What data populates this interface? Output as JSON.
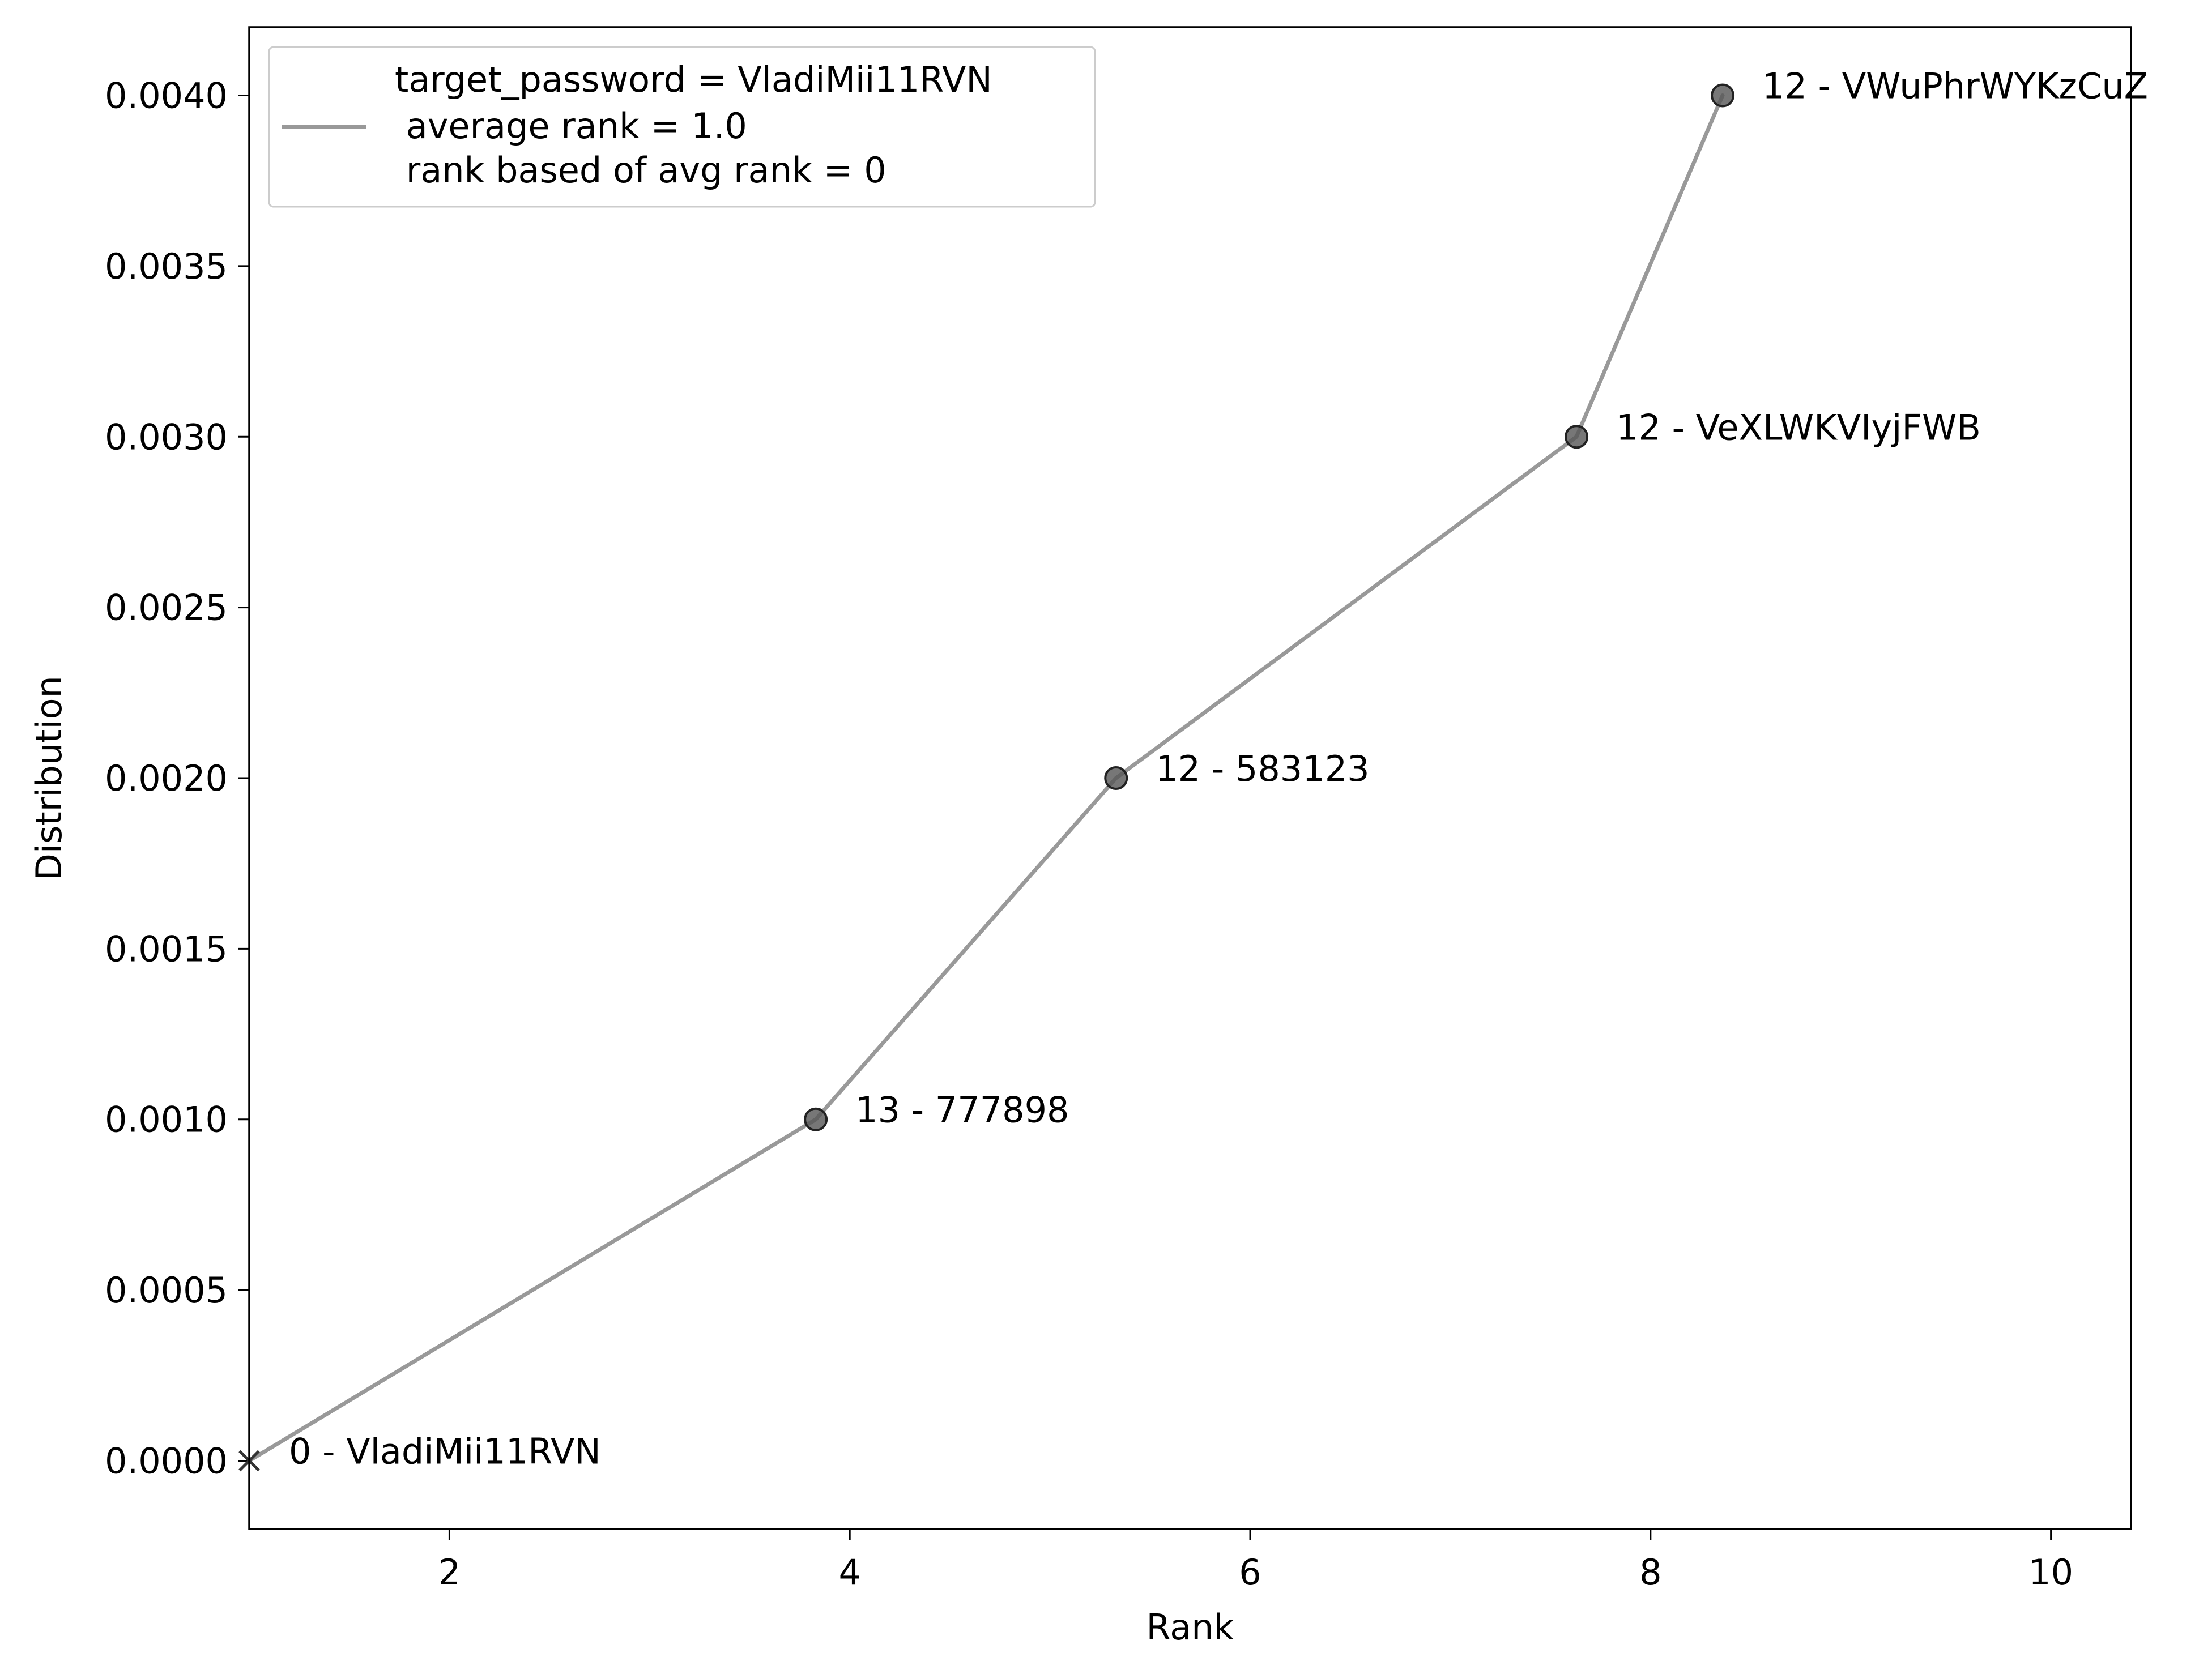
{
  "chart_data": {
    "type": "line",
    "title": "",
    "xlabel": "Rank",
    "ylabel": "Distribution",
    "xlim": [
      1.0,
      10.4
    ],
    "ylim": [
      -0.0002,
      0.0042
    ],
    "xticks": [
      {
        "value": 2,
        "label": "2"
      },
      {
        "value": 4,
        "label": "4"
      },
      {
        "value": 6,
        "label": "6"
      },
      {
        "value": 8,
        "label": "8"
      },
      {
        "value": 10,
        "label": "10"
      }
    ],
    "yticks": [
      {
        "value": 0.0,
        "label": "0.0000"
      },
      {
        "value": 0.0005,
        "label": "0.0005"
      },
      {
        "value": 0.001,
        "label": "0.0010"
      },
      {
        "value": 0.0015,
        "label": "0.0015"
      },
      {
        "value": 0.002,
        "label": "0.0020"
      },
      {
        "value": 0.0025,
        "label": "0.0025"
      },
      {
        "value": 0.003,
        "label": "0.0030"
      },
      {
        "value": 0.0035,
        "label": "0.0035"
      },
      {
        "value": 0.004,
        "label": "0.0040"
      }
    ],
    "grid": false,
    "legend_position": "top-left",
    "legend": {
      "lines": [
        "target_password = VladiMii11RVN",
        " average rank = 1.0",
        " rank based of avg rank = 0"
      ]
    },
    "series": [
      {
        "color": "#999999",
        "points": [
          {
            "x": 1.0,
            "y": 0.0,
            "label": "0 - VladiMii11RVN",
            "marker": "x"
          },
          {
            "x": 3.83,
            "y": 0.001,
            "label": "13 - 777898",
            "marker": "circle"
          },
          {
            "x": 5.33,
            "y": 0.002,
            "label": "12 - 583123",
            "marker": "circle"
          },
          {
            "x": 7.63,
            "y": 0.003,
            "label": "12 - VeXLWKVIyjFWB",
            "marker": "circle"
          },
          {
            "x": 8.36,
            "y": 0.004,
            "label": "12 - VWuPhrWYKzCuZ",
            "marker": "circle"
          }
        ]
      }
    ],
    "marker_color": "#555555"
  }
}
